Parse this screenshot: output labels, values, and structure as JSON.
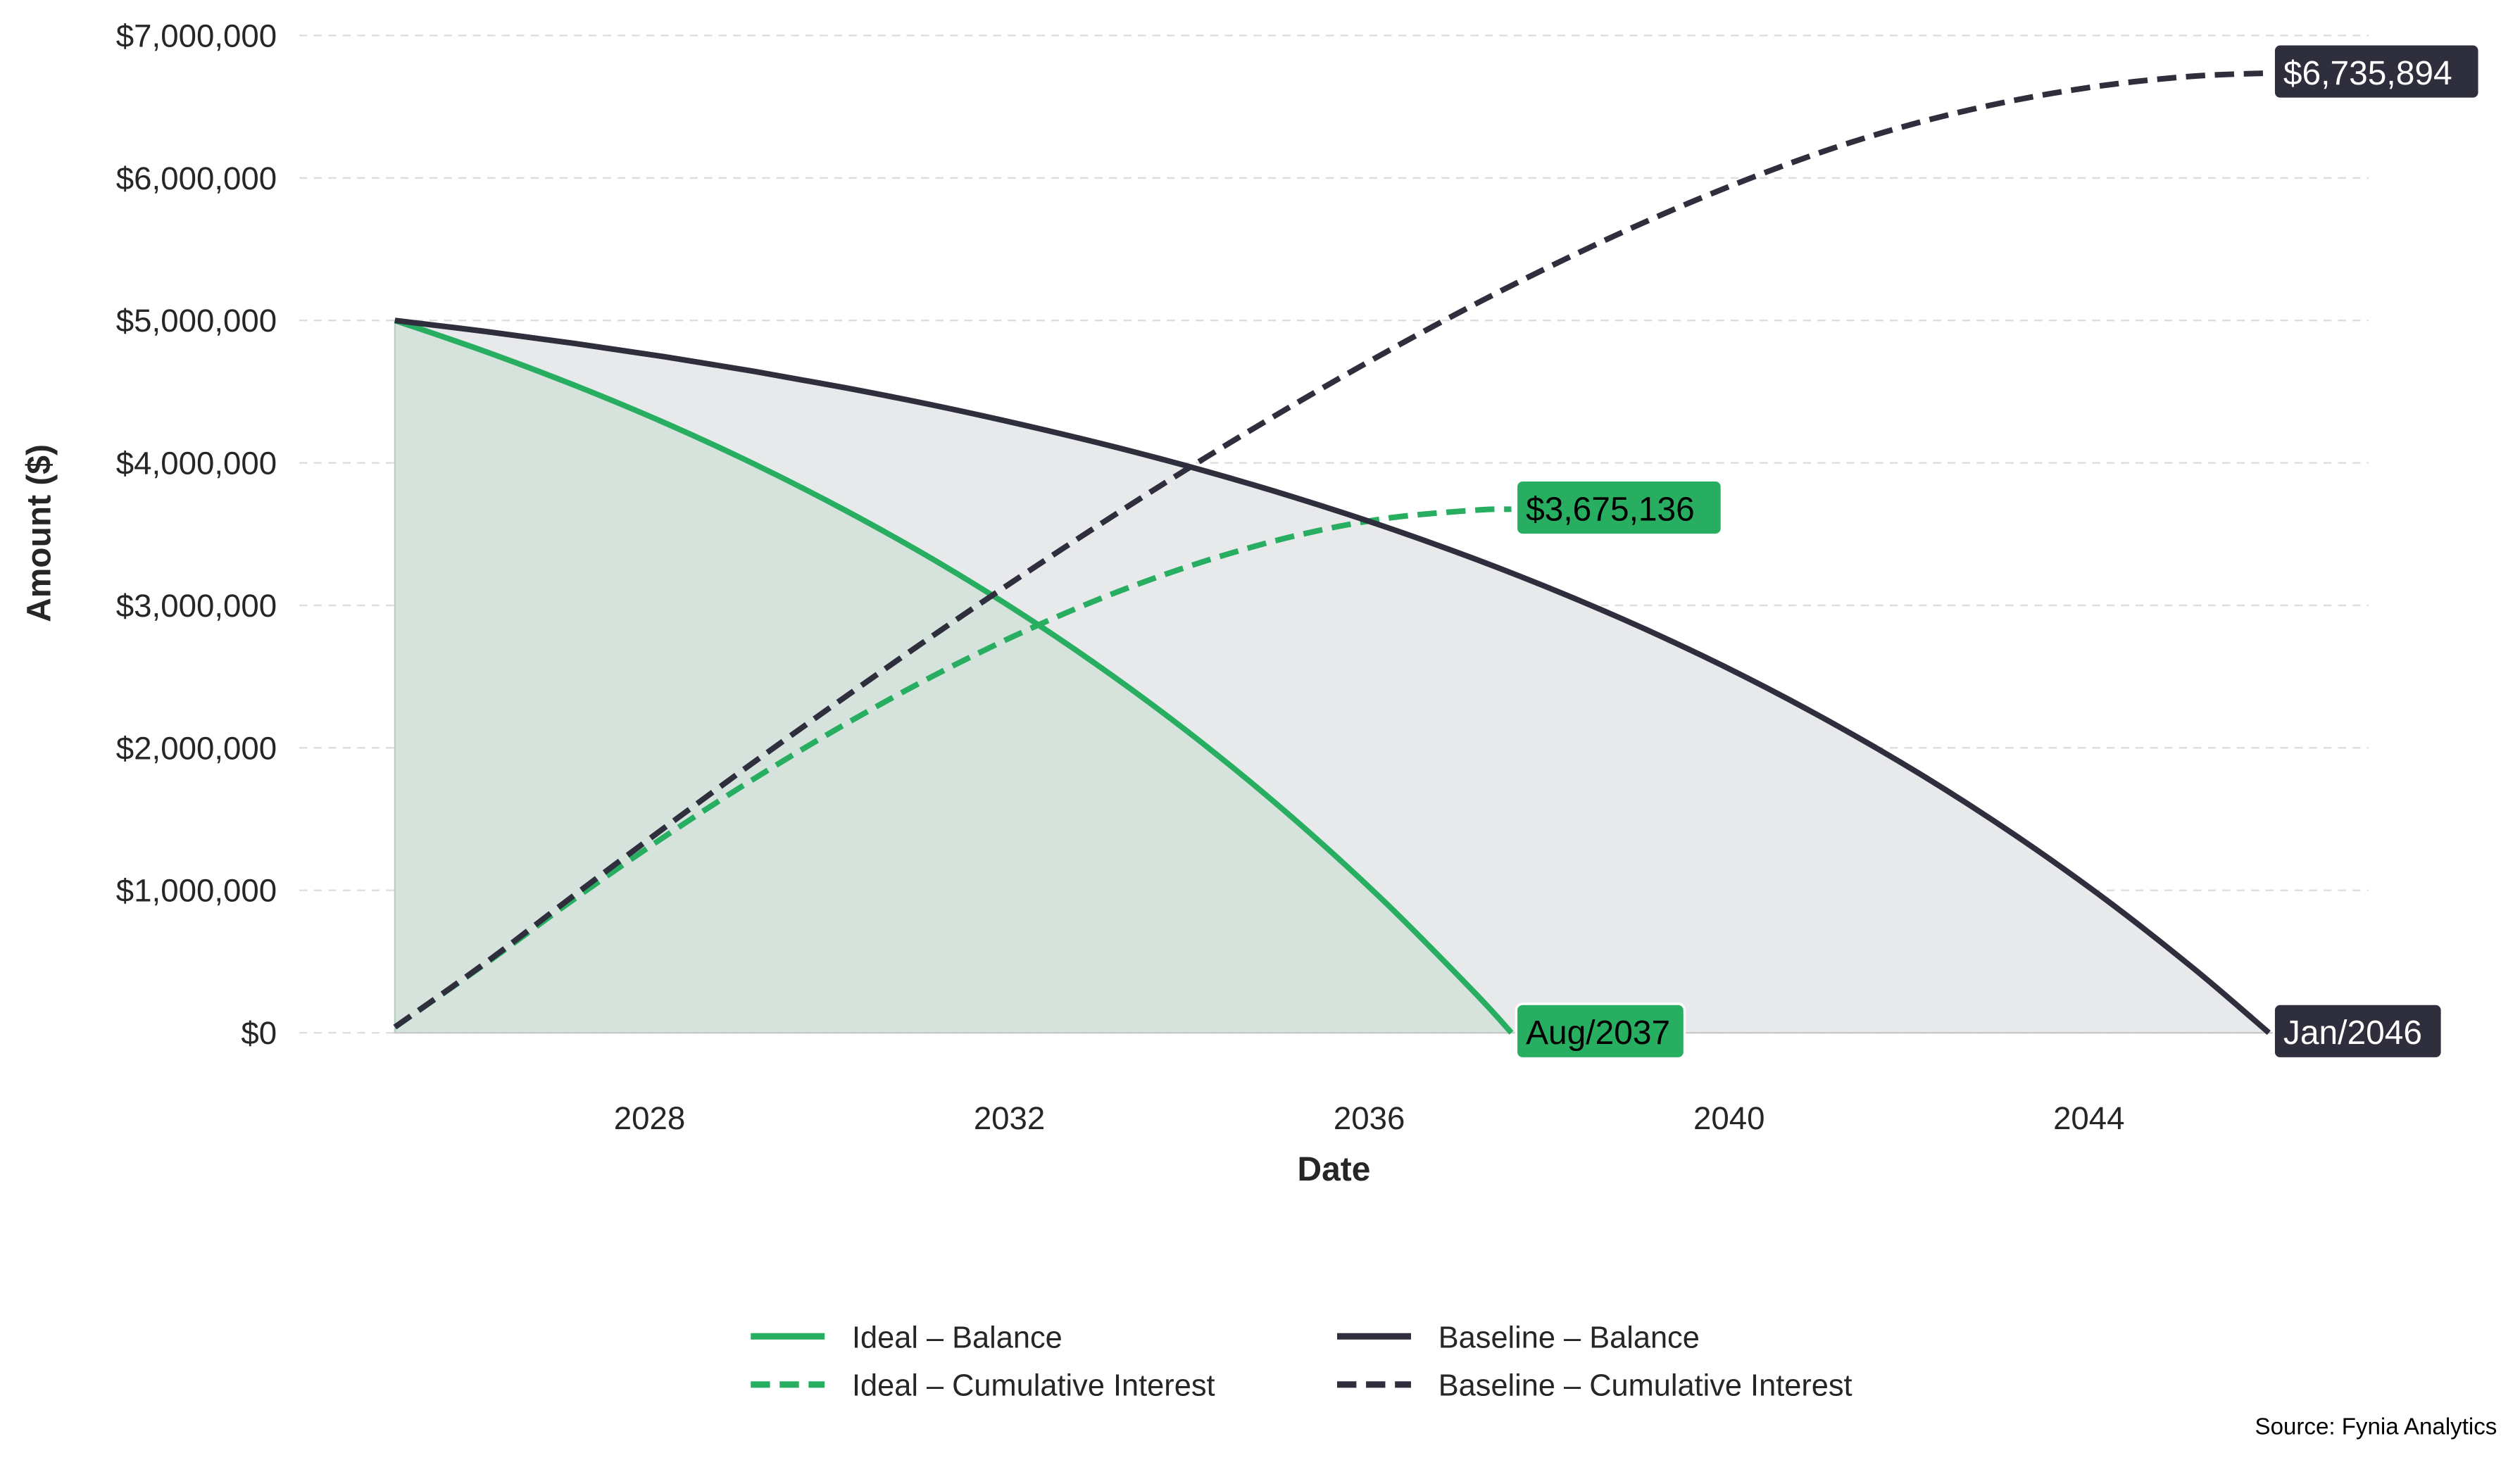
{
  "chart_data": {
    "type": "line",
    "title": "",
    "xlabel": "Date",
    "ylabel": "Amount ($)",
    "xlim": [
      2024.5,
      2047.6
    ],
    "ylim": [
      0,
      7000000
    ],
    "x_ticks": [
      2028,
      2032,
      2036,
      2040,
      2044
    ],
    "x_tick_labels": [
      "2028",
      "2032",
      "2036",
      "2040",
      "2044"
    ],
    "y_ticks": [
      0,
      1000000,
      2000000,
      3000000,
      4000000,
      5000000,
      6000000,
      7000000
    ],
    "y_tick_labels": [
      "$0",
      "$1,000,000",
      "$2,000,000",
      "$3,000,000",
      "$4,000,000",
      "$5,000,000",
      "$6,000,000",
      "$7,000,000"
    ],
    "grid": "horizontal dashed",
    "legend_position": "bottom-center",
    "colors": {
      "ideal": "#27ae60",
      "baseline": "#2e2e3d",
      "ideal_fill": "#d5e3dc",
      "baseline_fill": "#e8e9eb",
      "grid": "#dddddd"
    },
    "series": [
      {
        "name": "Ideal – Balance",
        "key": "ideal",
        "style": "solid",
        "fill": true,
        "x": [
          2025.17,
          2026.17,
          2027.17,
          2028.17,
          2029.17,
          2030.17,
          2031.17,
          2032.17,
          2033.17,
          2034.17,
          2035.17,
          2036.17,
          2037.17,
          2037.58
        ],
        "values": [
          5000000,
          4783000,
          4544000,
          4281000,
          3990000,
          3669000,
          3316000,
          2926000,
          2495000,
          2021000,
          1497000,
          920000,
          283000,
          0
        ]
      },
      {
        "name": "Ideal – Cumulative Interest",
        "key": "ideal",
        "style": "dashed",
        "x": [
          2025.17,
          2026.17,
          2027.17,
          2028.17,
          2029.17,
          2030.17,
          2031.17,
          2032.17,
          2033.17,
          2034.17,
          2035.17,
          2036.17,
          2037.17,
          2037.58
        ],
        "values": [
          40000,
          482000,
          942000,
          1378000,
          1786000,
          2164000,
          2510000,
          2819000,
          3087000,
          3310000,
          3487000,
          3609000,
          3668000,
          3675136
        ]
      },
      {
        "name": "Baseline – Balance",
        "key": "baseline",
        "style": "solid",
        "fill": true,
        "x": [
          2025.17,
          2026.17,
          2027.17,
          2028.17,
          2029.17,
          2030.17,
          2031.17,
          2032.17,
          2033.17,
          2034.17,
          2035.17,
          2036.17,
          2037.17,
          2038.17,
          2039.17,
          2040.17,
          2041.17,
          2042.17,
          2043.17,
          2044.17,
          2045.17,
          2046.0
        ],
        "values": [
          5000000,
          4923000,
          4838000,
          4745000,
          4642000,
          4528000,
          4403000,
          4264000,
          4112000,
          3944000,
          3758000,
          3553000,
          3327000,
          3078000,
          2804000,
          2501000,
          2166000,
          1798000,
          1391000,
          943000,
          448000,
          0
        ]
      },
      {
        "name": "Baseline – Cumulative Interest",
        "key": "baseline",
        "style": "dashed",
        "x": [
          2025.17,
          2026.17,
          2027.17,
          2028.17,
          2029.17,
          2030.17,
          2031.17,
          2032.17,
          2033.17,
          2034.17,
          2035.17,
          2036.17,
          2037.17,
          2038.17,
          2039.17,
          2040.17,
          2041.17,
          2042.17,
          2043.17,
          2044.17,
          2045.17,
          2046.0
        ],
        "values": [
          40000,
          488000,
          969000,
          1441000,
          1904000,
          2355000,
          2796000,
          3222000,
          3635000,
          4033000,
          4412000,
          4772000,
          5112000,
          5428000,
          5720000,
          5982000,
          6212000,
          6400000,
          6545000,
          6650000,
          6715000,
          6735894
        ]
      }
    ],
    "annotations": [
      {
        "text": "$3,675,136",
        "x": 2037.58,
        "y": 3675136,
        "key": "ideal"
      },
      {
        "text": "Aug/2037",
        "x": 2037.58,
        "y": 0,
        "key": "ideal"
      },
      {
        "text": "$6,735,894",
        "x": 2046.0,
        "y": 6735894,
        "key": "baseline"
      },
      {
        "text": "Jan/2046",
        "x": 2046.0,
        "y": 0,
        "key": "baseline"
      }
    ],
    "source": "Source: Fynia Analytics"
  }
}
